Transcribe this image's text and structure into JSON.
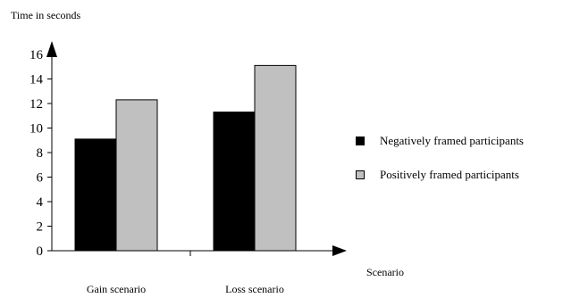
{
  "chart_data": {
    "type": "bar",
    "ylabel": "Time in seconds",
    "xlabel": "Scenario",
    "categories": [
      "Gain scenario",
      "Loss scenario"
    ],
    "series": [
      {
        "name": "Negatively framed participants",
        "color": "#000000",
        "values": [
          9.1,
          11.3
        ]
      },
      {
        "name": "Positively framed participants",
        "color": "#c0c0c0",
        "values": [
          12.3,
          15.1
        ]
      }
    ],
    "ylim": [
      0,
      16
    ],
    "yticks": [
      "0",
      "2",
      "4",
      "6",
      "8",
      "10",
      "12",
      "14",
      "16"
    ],
    "grid": false,
    "legend_position": "right"
  }
}
